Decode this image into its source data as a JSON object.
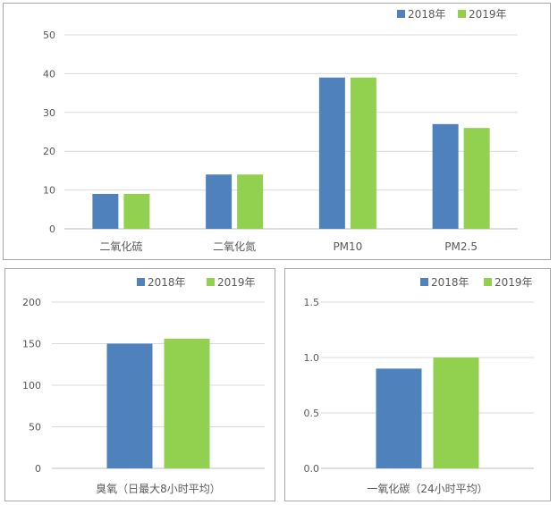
{
  "colors": {
    "2018": "#4f81bd",
    "2019": "#92d050",
    "grid": "#d9d9d9",
    "axis": "#bfbfbf"
  },
  "legend": [
    "2018年",
    "2019年"
  ],
  "chart_data": [
    {
      "type": "bar",
      "categories": [
        "二氧化硫",
        "二氧化氮",
        "PM10",
        "PM2.5"
      ],
      "series": [
        {
          "name": "2018年",
          "values": [
            9,
            14,
            39,
            27
          ]
        },
        {
          "name": "2019年",
          "values": [
            9,
            14,
            39,
            26
          ]
        }
      ],
      "ylim": [
        0,
        50
      ],
      "yticks": [
        "0",
        "10",
        "20",
        "30",
        "40",
        "50"
      ],
      "grid": true,
      "legend_position": "top-right"
    },
    {
      "type": "bar",
      "categories": [
        "臭氧（日最大8小时平均）"
      ],
      "series": [
        {
          "name": "2018年",
          "values": [
            150
          ]
        },
        {
          "name": "2019年",
          "values": [
            156
          ]
        }
      ],
      "ylim": [
        0,
        200
      ],
      "yticks": [
        "0",
        "50",
        "100",
        "150",
        "200"
      ],
      "grid": true,
      "legend_position": "top-right"
    },
    {
      "type": "bar",
      "categories": [
        "一氧化碳（24小时平均）"
      ],
      "series": [
        {
          "name": "2018年",
          "values": [
            0.9
          ]
        },
        {
          "name": "2019年",
          "values": [
            1.0
          ]
        }
      ],
      "ylim": [
        0,
        1.5
      ],
      "yticks": [
        "0.0",
        "0.5",
        "1.0",
        "1.5"
      ],
      "grid": true,
      "legend_position": "top-right"
    }
  ]
}
